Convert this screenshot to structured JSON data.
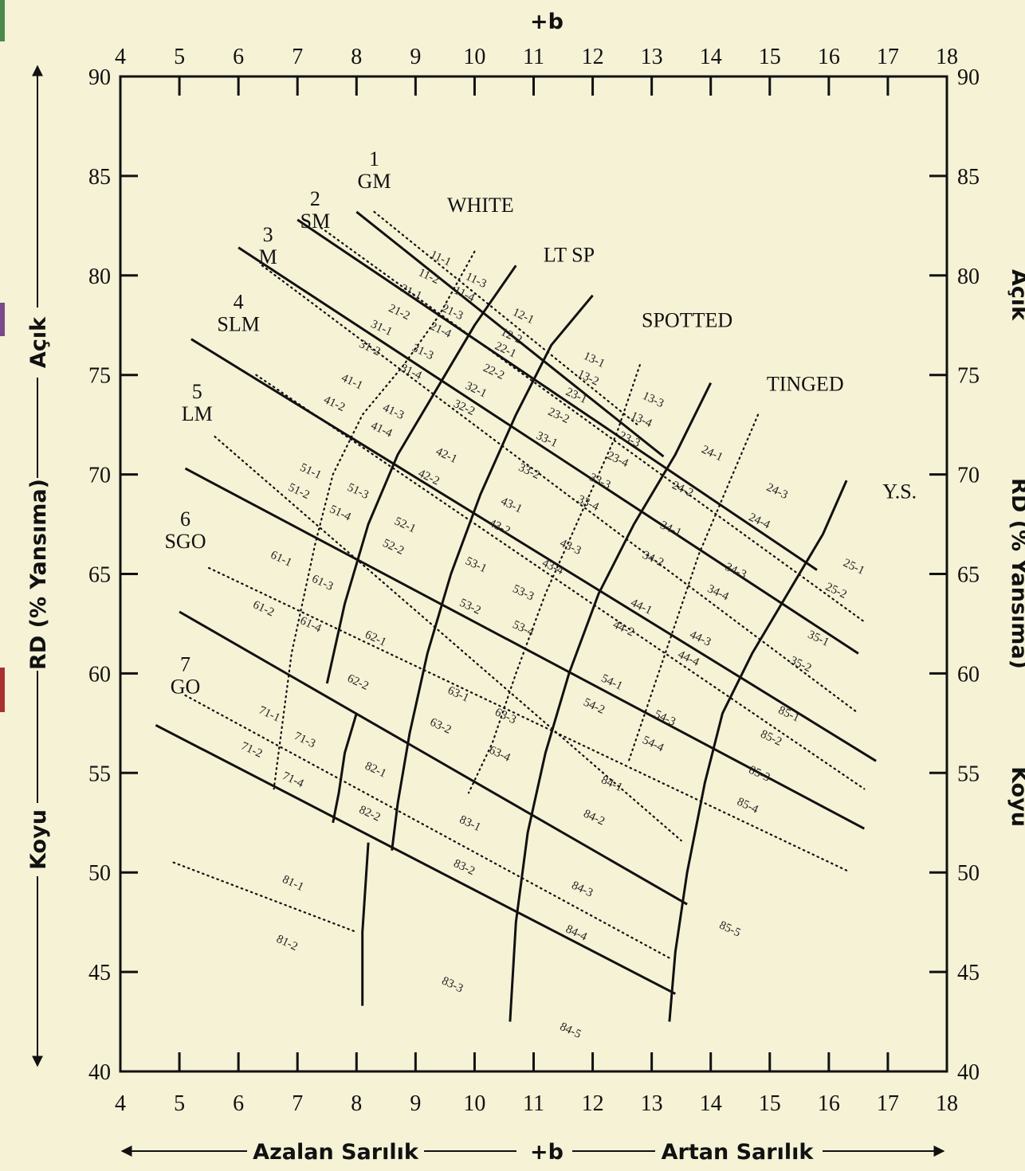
{
  "chart_data": {
    "type": "line",
    "title": "",
    "xlabel_top": "+b",
    "xlabel_bottom": {
      "left": "Azalan Sarılık",
      "center": "+b",
      "right": "Artan Sarılık"
    },
    "ylabel_left": {
      "top": "Açık",
      "center": "RD (% Yansıma)",
      "bottom": "Koyu"
    },
    "ylabel_right": {
      "top": "Açık",
      "center": "RD (% Yansıma)",
      "bottom": "Koyu"
    },
    "xlim": [
      4,
      18
    ],
    "ylim": [
      40,
      90
    ],
    "x_ticks": [
      4,
      5,
      6,
      7,
      8,
      9,
      10,
      11,
      12,
      13,
      14,
      15,
      16,
      17,
      18
    ],
    "y_ticks": [
      40,
      45,
      50,
      55,
      60,
      65,
      70,
      75,
      80,
      85,
      90
    ],
    "grade_labels": [
      {
        "num": "1",
        "name": "GM",
        "x": 8.3,
        "y": 84.4
      },
      {
        "num": "2",
        "name": "SM",
        "x": 7.3,
        "y": 82.4
      },
      {
        "num": "3",
        "name": "M",
        "x": 6.5,
        "y": 80.6
      },
      {
        "num": "4",
        "name": "SLM",
        "x": 6.0,
        "y": 77.2
      },
      {
        "num": "5",
        "name": "LM",
        "x": 5.3,
        "y": 72.7
      },
      {
        "num": "6",
        "name": "SGO",
        "x": 5.1,
        "y": 66.3
      },
      {
        "num": "7",
        "name": "GO",
        "x": 5.1,
        "y": 59.0
      }
    ],
    "color_regions": [
      {
        "name": "WHITE",
        "x": 10.1,
        "y": 83.2
      },
      {
        "name": "LT SP",
        "x": 11.6,
        "y": 80.7
      },
      {
        "name": "SPOTTED",
        "x": 13.6,
        "y": 77.4
      },
      {
        "name": "TINGED",
        "x": 15.6,
        "y": 74.2
      },
      {
        "name": "Y.S.",
        "x": 17.2,
        "y": 68.8
      }
    ],
    "series": [
      {
        "style": "solid",
        "x": [
          8.0,
          13.2
        ],
        "y": [
          83.2,
          70.9
        ]
      },
      {
        "style": "solid",
        "x": [
          7.0,
          15.8
        ],
        "y": [
          82.8,
          65.2
        ]
      },
      {
        "style": "solid",
        "x": [
          6.0,
          16.5
        ],
        "y": [
          81.4,
          61.0
        ]
      },
      {
        "style": "solid",
        "x": [
          5.2,
          16.8
        ],
        "y": [
          76.8,
          55.6
        ]
      },
      {
        "style": "solid",
        "x": [
          5.1,
          16.6
        ],
        "y": [
          70.3,
          52.2
        ]
      },
      {
        "style": "solid",
        "x": [
          5.0,
          13.6
        ],
        "y": [
          63.1,
          48.4
        ]
      },
      {
        "style": "solid",
        "x": [
          4.6,
          13.4
        ],
        "y": [
          57.4,
          43.9
        ]
      },
      {
        "style": "solid",
        "x": [
          16.3,
          15.9,
          15.3,
          14.7,
          14.2,
          13.9,
          13.6,
          13.4,
          13.3
        ],
        "y": [
          69.7,
          67.0,
          64.0,
          61.0,
          58.0,
          54.5,
          50.0,
          46.0,
          42.5
        ]
      },
      {
        "style": "solid",
        "x": [
          14.0,
          13.4,
          12.7,
          12.1,
          11.6,
          11.2,
          10.9,
          10.7,
          10.6
        ],
        "y": [
          74.6,
          71.0,
          67.5,
          64.0,
          60.0,
          56.0,
          52.0,
          47.5,
          42.5
        ]
      },
      {
        "style": "solid",
        "x": [
          12.0,
          11.3,
          10.7,
          10.1,
          9.6,
          9.2,
          8.9,
          8.7,
          8.6
        ],
        "y": [
          79.0,
          76.5,
          73.0,
          69.0,
          65.0,
          61.0,
          57.0,
          53.5,
          51.1
        ]
      },
      {
        "style": "solid",
        "x": [
          10.7,
          10.0,
          9.4,
          8.7,
          8.2,
          7.8,
          7.5
        ],
        "y": [
          80.5,
          77.5,
          74.5,
          71.0,
          67.5,
          63.5,
          59.5
        ]
      },
      {
        "style": "solid",
        "x": [
          8.0,
          7.8,
          7.7,
          7.6
        ],
        "y": [
          58.0,
          56.0,
          54.0,
          52.5
        ]
      },
      {
        "style": "solid",
        "x": [
          8.2,
          8.1,
          8.1
        ],
        "y": [
          51.5,
          47.0,
          43.3
        ]
      },
      {
        "style": "dotted",
        "x": [
          8.3,
          12.8
        ],
        "y": [
          83.2,
          72.4
        ]
      },
      {
        "style": "dotted",
        "x": [
          7.4,
          16.6
        ],
        "y": [
          82.4,
          62.6
        ]
      },
      {
        "style": "dotted",
        "x": [
          6.4,
          16.5
        ],
        "y": [
          80.5,
          58.0
        ]
      },
      {
        "style": "dotted",
        "x": [
          6.3,
          16.6
        ],
        "y": [
          75.0,
          54.2
        ]
      },
      {
        "style": "dotted",
        "x": [
          5.6,
          13.5
        ],
        "y": [
          71.9,
          51.6
        ]
      },
      {
        "style": "dotted",
        "x": [
          5.5,
          16.3
        ],
        "y": [
          65.3,
          50.1
        ]
      },
      {
        "style": "dotted",
        "x": [
          5.1,
          13.3
        ],
        "y": [
          58.9,
          45.7
        ]
      },
      {
        "style": "dotted",
        "x": [
          4.9,
          8.0
        ],
        "y": [
          50.5,
          47.0
        ]
      },
      {
        "style": "dotted",
        "x": [
          10.0,
          9.4,
          8.8,
          8.1,
          7.6,
          7.3,
          6.9,
          6.6
        ],
        "y": [
          81.2,
          78.0,
          75.5,
          73.0,
          70.0,
          66.5,
          61.0,
          54.2
        ]
      },
      {
        "style": "dotted",
        "x": [
          12.8,
          12.4,
          11.8,
          11.2,
          10.7,
          10.3,
          9.9
        ],
        "y": [
          75.5,
          72.0,
          68.0,
          64.0,
          60.0,
          56.5,
          54.0
        ]
      },
      {
        "style": "dotted",
        "x": [
          14.8,
          14.3,
          13.8,
          13.4,
          13.0,
          12.6
        ],
        "y": [
          73.0,
          69.5,
          66.0,
          62.5,
          59.0,
          55.5
        ]
      }
    ],
    "cells": [
      {
        "t": "11-1",
        "x": 9.4,
        "y": 80.7
      },
      {
        "t": "11-2",
        "x": 9.2,
        "y": 79.8
      },
      {
        "t": "11-3",
        "x": 10.0,
        "y": 79.6
      },
      {
        "t": "11-4",
        "x": 9.8,
        "y": 78.9
      },
      {
        "t": "21-1",
        "x": 8.9,
        "y": 79.0
      },
      {
        "t": "21-2",
        "x": 8.7,
        "y": 78.0
      },
      {
        "t": "21-3",
        "x": 9.6,
        "y": 78.0
      },
      {
        "t": "21-4",
        "x": 9.4,
        "y": 77.1
      },
      {
        "t": "12-1",
        "x": 10.8,
        "y": 77.8
      },
      {
        "t": "12-2",
        "x": 10.6,
        "y": 76.8
      },
      {
        "t": "22-1",
        "x": 10.5,
        "y": 76.1
      },
      {
        "t": "22-2",
        "x": 10.3,
        "y": 75.0
      },
      {
        "t": "31-1",
        "x": 8.4,
        "y": 77.2
      },
      {
        "t": "31-2",
        "x": 8.2,
        "y": 76.2
      },
      {
        "t": "31-3",
        "x": 9.1,
        "y": 76.0
      },
      {
        "t": "31-4",
        "x": 8.9,
        "y": 75.0
      },
      {
        "t": "13-1",
        "x": 12.0,
        "y": 75.6
      },
      {
        "t": "13-2",
        "x": 11.9,
        "y": 74.7
      },
      {
        "t": "13-3",
        "x": 13.0,
        "y": 73.6
      },
      {
        "t": "13-4",
        "x": 12.8,
        "y": 72.6
      },
      {
        "t": "23-1",
        "x": 11.7,
        "y": 73.8
      },
      {
        "t": "23-2",
        "x": 11.4,
        "y": 72.8
      },
      {
        "t": "23-3",
        "x": 12.6,
        "y": 71.6
      },
      {
        "t": "23-4",
        "x": 12.4,
        "y": 70.6
      },
      {
        "t": "32-1",
        "x": 10.0,
        "y": 74.1
      },
      {
        "t": "32-2",
        "x": 9.8,
        "y": 73.2
      },
      {
        "t": "41-1",
        "x": 7.9,
        "y": 74.5
      },
      {
        "t": "41-2",
        "x": 7.6,
        "y": 73.4
      },
      {
        "t": "41-3",
        "x": 8.6,
        "y": 73.0
      },
      {
        "t": "41-4",
        "x": 8.4,
        "y": 72.1
      },
      {
        "t": "33-1",
        "x": 11.2,
        "y": 71.6
      },
      {
        "t": "33-2",
        "x": 10.9,
        "y": 70.0
      },
      {
        "t": "33-3",
        "x": 12.1,
        "y": 69.5
      },
      {
        "t": "33-4",
        "x": 11.9,
        "y": 68.4
      },
      {
        "t": "24-1",
        "x": 14.0,
        "y": 70.9
      },
      {
        "t": "24-2",
        "x": 13.5,
        "y": 69.1
      },
      {
        "t": "24-3",
        "x": 15.1,
        "y": 69.0
      },
      {
        "t": "24-4",
        "x": 14.8,
        "y": 67.5
      },
      {
        "t": "42-1",
        "x": 9.5,
        "y": 70.8
      },
      {
        "t": "42-2",
        "x": 9.2,
        "y": 69.7
      },
      {
        "t": "51-1",
        "x": 7.2,
        "y": 70.0
      },
      {
        "t": "51-2",
        "x": 7.0,
        "y": 69.0
      },
      {
        "t": "51-3",
        "x": 8.0,
        "y": 69.0
      },
      {
        "t": "51-4",
        "x": 7.7,
        "y": 67.9
      },
      {
        "t": "43-1",
        "x": 10.6,
        "y": 68.3
      },
      {
        "t": "43-2",
        "x": 10.4,
        "y": 67.2
      },
      {
        "t": "43-3",
        "x": 11.6,
        "y": 66.2
      },
      {
        "t": "43-4",
        "x": 11.3,
        "y": 65.2
      },
      {
        "t": "34-1",
        "x": 13.3,
        "y": 67.1
      },
      {
        "t": "34-2",
        "x": 13.0,
        "y": 65.6
      },
      {
        "t": "34-3",
        "x": 14.4,
        "y": 65.0
      },
      {
        "t": "34-4",
        "x": 14.1,
        "y": 63.9
      },
      {
        "t": "25-1",
        "x": 16.4,
        "y": 65.2
      },
      {
        "t": "25-2",
        "x": 16.1,
        "y": 64.0
      },
      {
        "t": "52-1",
        "x": 8.8,
        "y": 67.3
      },
      {
        "t": "52-2",
        "x": 8.6,
        "y": 66.2
      },
      {
        "t": "61-1",
        "x": 6.7,
        "y": 65.6
      },
      {
        "t": "61-2",
        "x": 6.4,
        "y": 63.1
      },
      {
        "t": "61-3",
        "x": 7.4,
        "y": 64.4
      },
      {
        "t": "61-4",
        "x": 7.2,
        "y": 62.3
      },
      {
        "t": "53-1",
        "x": 10.0,
        "y": 65.3
      },
      {
        "t": "53-2",
        "x": 9.9,
        "y": 63.2
      },
      {
        "t": "53-3",
        "x": 10.8,
        "y": 63.9
      },
      {
        "t": "53-4",
        "x": 10.8,
        "y": 62.1
      },
      {
        "t": "44-1",
        "x": 12.8,
        "y": 63.2
      },
      {
        "t": "44-2",
        "x": 12.5,
        "y": 62.1
      },
      {
        "t": "44-3",
        "x": 13.8,
        "y": 61.6
      },
      {
        "t": "44-4",
        "x": 13.6,
        "y": 60.6
      },
      {
        "t": "35-1",
        "x": 15.8,
        "y": 61.6
      },
      {
        "t": "35-2",
        "x": 15.5,
        "y": 60.3
      },
      {
        "t": "62-1",
        "x": 8.3,
        "y": 61.6
      },
      {
        "t": "62-2",
        "x": 8.0,
        "y": 59.4
      },
      {
        "t": "54-1",
        "x": 12.3,
        "y": 59.4
      },
      {
        "t": "54-2",
        "x": 12.0,
        "y": 58.2
      },
      {
        "t": "54-3",
        "x": 13.2,
        "y": 57.6
      },
      {
        "t": "54-4",
        "x": 13.0,
        "y": 56.3
      },
      {
        "t": "85-1",
        "x": 15.3,
        "y": 57.8
      },
      {
        "t": "85-2",
        "x": 15.0,
        "y": 56.6
      },
      {
        "t": "85-3",
        "x": 14.8,
        "y": 54.8
      },
      {
        "t": "85-4",
        "x": 14.6,
        "y": 53.2
      },
      {
        "t": "63-1",
        "x": 9.7,
        "y": 58.8
      },
      {
        "t": "63-2",
        "x": 9.4,
        "y": 57.2
      },
      {
        "t": "63-3",
        "x": 10.5,
        "y": 57.7
      },
      {
        "t": "63-4",
        "x": 10.4,
        "y": 55.8
      },
      {
        "t": "71-1",
        "x": 6.5,
        "y": 57.8
      },
      {
        "t": "71-2",
        "x": 6.2,
        "y": 56.0
      },
      {
        "t": "71-3",
        "x": 7.1,
        "y": 56.5
      },
      {
        "t": "71-4",
        "x": 6.9,
        "y": 54.5
      },
      {
        "t": "82-1",
        "x": 8.3,
        "y": 55.0
      },
      {
        "t": "82-2",
        "x": 8.2,
        "y": 52.8
      },
      {
        "t": "84-1",
        "x": 12.3,
        "y": 54.3
      },
      {
        "t": "84-2",
        "x": 12.0,
        "y": 52.6
      },
      {
        "t": "83-1",
        "x": 9.9,
        "y": 52.3
      },
      {
        "t": "83-2",
        "x": 9.8,
        "y": 50.1
      },
      {
        "t": "84-3",
        "x": 11.8,
        "y": 49.0
      },
      {
        "t": "84-4",
        "x": 11.7,
        "y": 46.8
      },
      {
        "t": "81-1",
        "x": 6.9,
        "y": 49.3
      },
      {
        "t": "81-2",
        "x": 6.8,
        "y": 46.3
      },
      {
        "t": "85-5",
        "x": 14.3,
        "y": 47.0
      },
      {
        "t": "83-3",
        "x": 9.6,
        "y": 44.2
      },
      {
        "t": "84-5",
        "x": 11.6,
        "y": 41.9
      }
    ]
  },
  "accents": [
    "#4a8a4a",
    "#7a4a8a",
    "#a83232"
  ]
}
